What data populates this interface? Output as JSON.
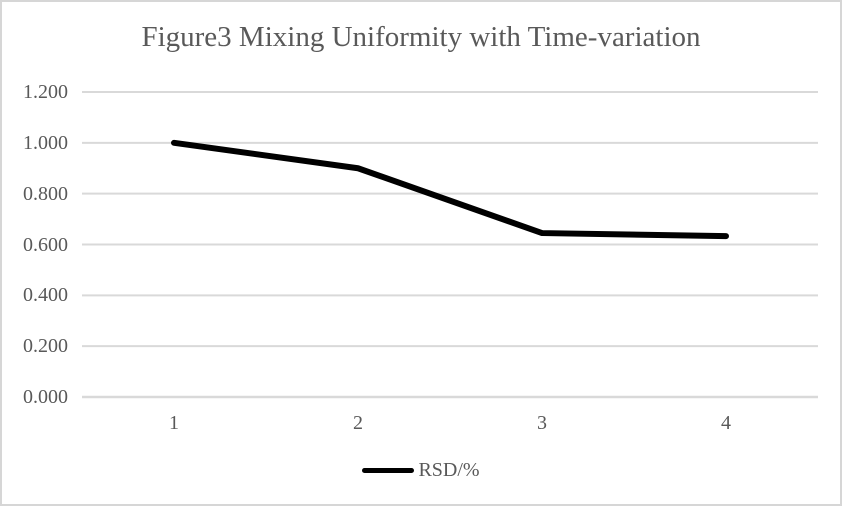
{
  "title": "Figure3 Mixing Uniformity with Time-variation",
  "legend": {
    "label": "RSD/%"
  },
  "colors": {
    "title_text": "#595959",
    "axis_text": "#595959",
    "gridline": "#d9d9d9",
    "axis_line": "#d9d9d9",
    "series_line": "#000000",
    "frame_border": "#d6d6d6",
    "background": "#ffffff"
  },
  "chart_data": {
    "type": "line",
    "title": "Figure3 Mixing Uniformity with Time-variation",
    "categories": [
      "1",
      "2",
      "3",
      "4"
    ],
    "series": [
      {
        "name": "RSD/%",
        "values": [
          1.0,
          0.9,
          0.645,
          0.633
        ]
      }
    ],
    "xlabel": "",
    "ylabel": "",
    "ylim": [
      0.0,
      1.2
    ],
    "yticks": [
      0.0,
      0.2,
      0.4,
      0.6,
      0.8,
      1.0,
      1.2
    ],
    "ytick_labels": [
      "0.000",
      "0.200",
      "0.400",
      "0.600",
      "0.800",
      "1.000",
      "1.200"
    ],
    "grid": true,
    "legend_position": "bottom"
  }
}
